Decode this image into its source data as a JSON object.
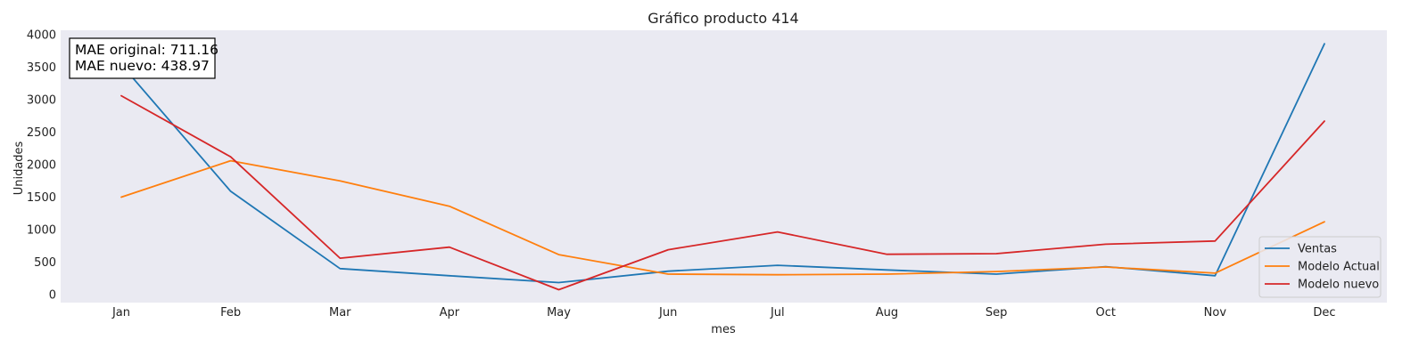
{
  "chart_data": {
    "type": "line",
    "title": "Gráfico producto 414",
    "xlabel": "mes",
    "ylabel": "Unidades",
    "categories": [
      "Jan",
      "Feb",
      "Mar",
      "Apr",
      "May",
      "Jun",
      "Jul",
      "Aug",
      "Sep",
      "Oct",
      "Nov",
      "Dec"
    ],
    "ylim": [
      -100,
      4000
    ],
    "yticks": [
      0,
      500,
      1000,
      1500,
      2000,
      2500,
      3000,
      3500,
      4000
    ],
    "grid": false,
    "legend_position": "lower-right",
    "annotation": [
      "MAE original: 711.16",
      "MAE nuevo: 438.97"
    ],
    "series": [
      {
        "name": "Ventas",
        "color": "#1f77b4",
        "values": [
          3540,
          1590,
          400,
          290,
          185,
          360,
          450,
          380,
          315,
          430,
          290,
          3860
        ]
      },
      {
        "name": "Modelo Actual",
        "color": "#ff7f0e",
        "values": [
          1500,
          2060,
          1750,
          1360,
          615,
          315,
          305,
          315,
          355,
          425,
          330,
          1120
        ]
      },
      {
        "name": "Modelo nuevo",
        "color": "#d62728",
        "values": [
          3060,
          2120,
          560,
          730,
          75,
          690,
          965,
          620,
          630,
          775,
          825,
          2670
        ]
      }
    ]
  }
}
